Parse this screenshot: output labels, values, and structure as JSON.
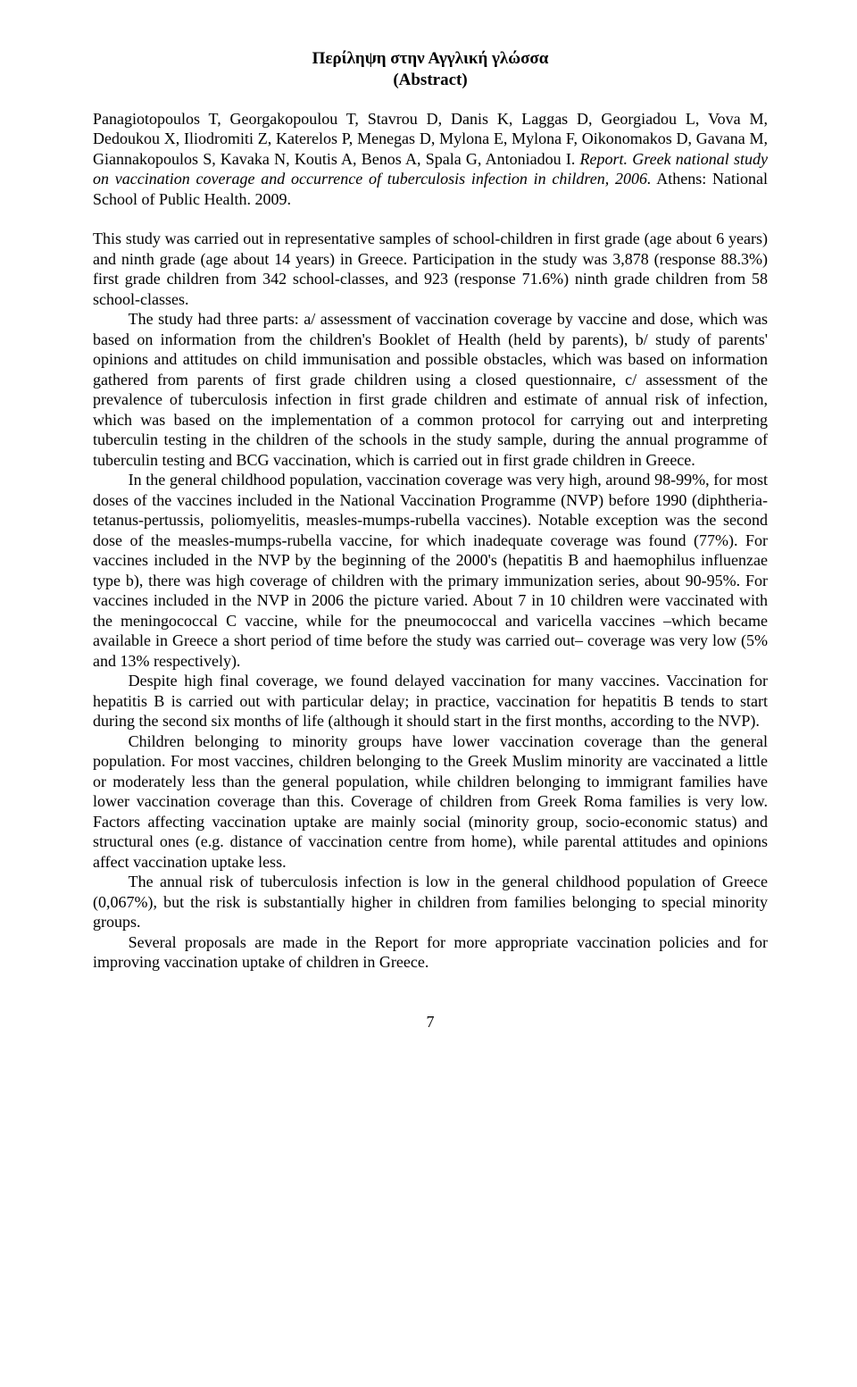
{
  "title": {
    "line1": "Περίληψη στην Αγγλική γλώσσα",
    "line2": "(Abstract)"
  },
  "citation": {
    "authors": "Panagiotopoulos T, Georgakopoulou T, Stavrou D, Danis K, Laggas D, Georgiadou L, Vova M, Dedoukou X, Iliodromiti Z, Katerelos P, Menegas D, Mylona E, Mylona F, Oikonomakos D, Gavana M, Giannakopoulos S, Kavaka N, Koutis A, Benos A, Spala G, Antoniadou I. ",
    "italic": "Report. Greek national study on vaccination coverage and occurrence of tuberculosis infection in children, 2006.",
    "tail": " Athens: National School of Public Health. 2009."
  },
  "paragraphs": {
    "p1": "This study was carried out in representative samples of school-children in first grade (age about 6 years) and ninth grade (age about 14 years) in Greece. Participation in the study was 3,878 (response 88.3%) first grade children from 342 school-classes, and 923 (response 71.6%) ninth grade children from 58 school-classes.",
    "p2": "The study had three parts: a/ assessment of vaccination coverage by vaccine and dose, which was based on information from the children's Booklet of Health (held by parents), b/ study of parents' opinions and attitudes on child immunisation and possible obstacles, which was based on information gathered from parents of first grade children using a closed questionnaire, c/ assessment of the prevalence of tuberculosis infection in first grade children and estimate of annual risk of infection, which was based on the implementation of a common protocol for carrying out and interpreting tuberculin testing in the children of the schools in the study sample, during the annual programme of tuberculin testing and BCG vaccination, which is carried out in first grade children in Greece.",
    "p3": "In the general childhood population, vaccination coverage was very high, around 98-99%, for most doses of the vaccines included in the National Vaccination Programme (NVP) before 1990 (diphtheria-tetanus-pertussis, poliomyelitis, measles-mumps-rubella vaccines). Notable exception was the second dose of the measles-mumps-rubella vaccine, for which inadequate coverage was found (77%). For vaccines included in the NVP by the beginning of the 2000's (hepatitis B and haemophilus influenzae type b), there was high coverage of children with the primary immunization series, about 90-95%. For vaccines included in the NVP in 2006 the picture varied. About 7 in 10 children were vaccinated with the meningococcal C vaccine, while for the pneumococcal and varicella vaccines –which became available in Greece a short period of time before the study was carried out– coverage was very low (5% and 13% respectively).",
    "p4": "Despite high final coverage, we found delayed vaccination for many vaccines. Vaccination for hepatitis B is carried out with particular delay; in practice, vaccination for hepatitis B tends to start during the second six months of life (although it should start in the first months, according to the NVP).",
    "p5": "Children belonging to minority groups have lower vaccination coverage than the general population. For most vaccines, children belonging to the Greek Muslim minority are vaccinated a little or moderately less than the general population, while children belonging to immigrant families have lower vaccination coverage than this. Coverage of children from Greek Roma families is very low. Factors affecting vaccination uptake are mainly social (minority group, socio-economic status) and structural ones (e.g. distance of vaccination centre from home), while parental attitudes and opinions affect vaccination uptake less.",
    "p6": "The annual risk of tuberculosis infection is low in the general childhood population of Greece (0,067%), but the risk is substantially higher in children from families belonging to special minority groups.",
    "p7": "Several proposals are made in the Report for more appropriate vaccination policies and for improving vaccination uptake of children in Greece."
  },
  "pageNumber": "7"
}
